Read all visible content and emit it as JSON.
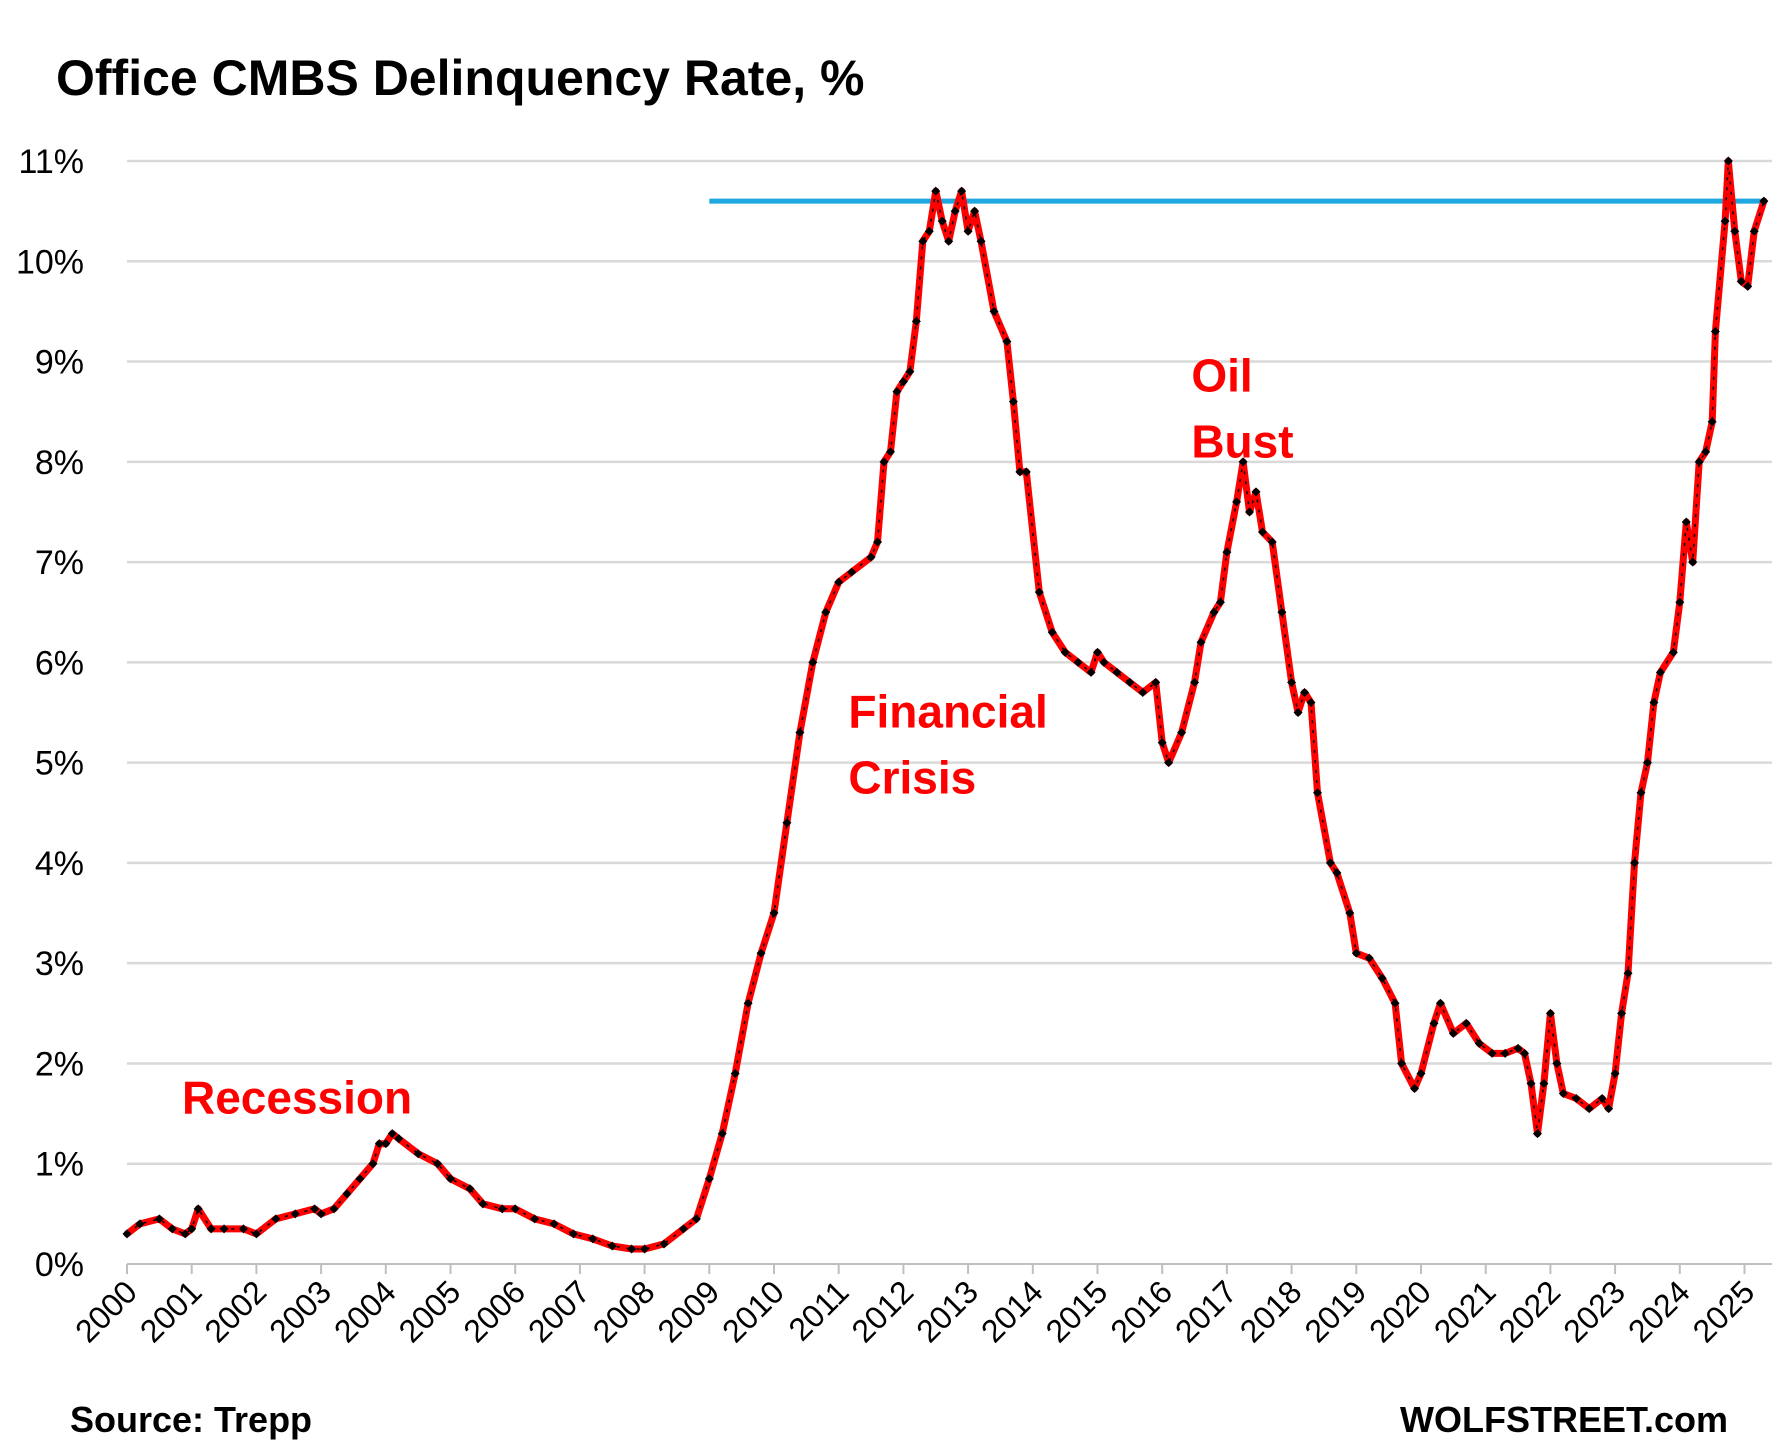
{
  "chart_data": {
    "type": "line",
    "title": "Office CMBS Delinquency Rate, %",
    "xlabel": "",
    "ylabel": "",
    "ylim": [
      0,
      11
    ],
    "xlim": [
      2000,
      2025.5
    ],
    "y_ticks": [
      "0%",
      "1%",
      "2%",
      "3%",
      "4%",
      "5%",
      "6%",
      "7%",
      "8%",
      "9%",
      "10%",
      "11%"
    ],
    "x_ticks": [
      "2000",
      "2001",
      "2002",
      "2003",
      "2004",
      "2005",
      "2006",
      "2007",
      "2008",
      "2009",
      "2010",
      "2011",
      "2012",
      "2013",
      "2014",
      "2015",
      "2016",
      "2017",
      "2018",
      "2019",
      "2020",
      "2021",
      "2022",
      "2023",
      "2024",
      "2025"
    ],
    "grid": true,
    "legend": "none",
    "colors": {
      "line": "#ff0000",
      "markers": "#000000",
      "reference_line": "#1fa8e0",
      "annotations": "#ff0000"
    },
    "series": [
      {
        "values": [
          [
            2000.0,
            0.3
          ],
          [
            2000.2,
            0.4
          ],
          [
            2000.5,
            0.45
          ],
          [
            2000.7,
            0.35
          ],
          [
            2000.9,
            0.3
          ],
          [
            2001.0,
            0.35
          ],
          [
            2001.1,
            0.55
          ],
          [
            2001.3,
            0.35
          ],
          [
            2001.5,
            0.35
          ],
          [
            2001.8,
            0.35
          ],
          [
            2002.0,
            0.3
          ],
          [
            2002.3,
            0.45
          ],
          [
            2002.6,
            0.5
          ],
          [
            2002.9,
            0.55
          ],
          [
            2003.0,
            0.5
          ],
          [
            2003.2,
            0.55
          ],
          [
            2003.4,
            0.7
          ],
          [
            2003.6,
            0.85
          ],
          [
            2003.8,
            1.0
          ],
          [
            2003.9,
            1.2
          ],
          [
            2004.0,
            1.2
          ],
          [
            2004.1,
            1.3
          ],
          [
            2004.2,
            1.25
          ],
          [
            2004.5,
            1.1
          ],
          [
            2004.8,
            1.0
          ],
          [
            2005.0,
            0.85
          ],
          [
            2005.3,
            0.75
          ],
          [
            2005.5,
            0.6
          ],
          [
            2005.8,
            0.55
          ],
          [
            2006.0,
            0.55
          ],
          [
            2006.3,
            0.45
          ],
          [
            2006.6,
            0.4
          ],
          [
            2006.9,
            0.3
          ],
          [
            2007.2,
            0.25
          ],
          [
            2007.5,
            0.18
          ],
          [
            2007.8,
            0.15
          ],
          [
            2008.0,
            0.15
          ],
          [
            2008.3,
            0.2
          ],
          [
            2008.6,
            0.35
          ],
          [
            2008.8,
            0.45
          ],
          [
            2009.0,
            0.85
          ],
          [
            2009.2,
            1.3
          ],
          [
            2009.4,
            1.9
          ],
          [
            2009.6,
            2.6
          ],
          [
            2009.8,
            3.1
          ],
          [
            2010.0,
            3.5
          ],
          [
            2010.2,
            4.4
          ],
          [
            2010.4,
            5.3
          ],
          [
            2010.6,
            6.0
          ],
          [
            2010.8,
            6.5
          ],
          [
            2011.0,
            6.8
          ],
          [
            2011.2,
            6.9
          ],
          [
            2011.5,
            7.05
          ],
          [
            2011.6,
            7.2
          ],
          [
            2011.7,
            8.0
          ],
          [
            2011.8,
            8.1
          ],
          [
            2011.9,
            8.7
          ],
          [
            2012.0,
            8.8
          ],
          [
            2012.1,
            8.9
          ],
          [
            2012.2,
            9.4
          ],
          [
            2012.3,
            10.2
          ],
          [
            2012.4,
            10.3
          ],
          [
            2012.5,
            10.7
          ],
          [
            2012.6,
            10.4
          ],
          [
            2012.7,
            10.2
          ],
          [
            2012.8,
            10.5
          ],
          [
            2012.9,
            10.7
          ],
          [
            2013.0,
            10.3
          ],
          [
            2013.1,
            10.5
          ],
          [
            2013.2,
            10.2
          ],
          [
            2013.4,
            9.5
          ],
          [
            2013.6,
            9.2
          ],
          [
            2013.7,
            8.6
          ],
          [
            2013.8,
            7.9
          ],
          [
            2013.9,
            7.9
          ],
          [
            2014.1,
            6.7
          ],
          [
            2014.3,
            6.3
          ],
          [
            2014.5,
            6.1
          ],
          [
            2014.7,
            6.0
          ],
          [
            2014.9,
            5.9
          ],
          [
            2015.0,
            6.1
          ],
          [
            2015.1,
            6.0
          ],
          [
            2015.3,
            5.9
          ],
          [
            2015.5,
            5.8
          ],
          [
            2015.7,
            5.7
          ],
          [
            2015.9,
            5.8
          ],
          [
            2016.0,
            5.2
          ],
          [
            2016.1,
            5.0
          ],
          [
            2016.3,
            5.3
          ],
          [
            2016.5,
            5.8
          ],
          [
            2016.6,
            6.2
          ],
          [
            2016.8,
            6.5
          ],
          [
            2016.9,
            6.6
          ],
          [
            2017.0,
            7.1
          ],
          [
            2017.15,
            7.6
          ],
          [
            2017.25,
            8.0
          ],
          [
            2017.35,
            7.5
          ],
          [
            2017.45,
            7.7
          ],
          [
            2017.55,
            7.3
          ],
          [
            2017.7,
            7.2
          ],
          [
            2017.85,
            6.5
          ],
          [
            2018.0,
            5.8
          ],
          [
            2018.1,
            5.5
          ],
          [
            2018.2,
            5.7
          ],
          [
            2018.3,
            5.6
          ],
          [
            2018.4,
            4.7
          ],
          [
            2018.6,
            4.0
          ],
          [
            2018.7,
            3.9
          ],
          [
            2018.9,
            3.5
          ],
          [
            2019.0,
            3.1
          ],
          [
            2019.2,
            3.05
          ],
          [
            2019.4,
            2.85
          ],
          [
            2019.6,
            2.6
          ],
          [
            2019.7,
            2.0
          ],
          [
            2019.9,
            1.75
          ],
          [
            2020.0,
            1.9
          ],
          [
            2020.2,
            2.4
          ],
          [
            2020.3,
            2.6
          ],
          [
            2020.5,
            2.3
          ],
          [
            2020.7,
            2.4
          ],
          [
            2020.9,
            2.2
          ],
          [
            2021.1,
            2.1
          ],
          [
            2021.3,
            2.1
          ],
          [
            2021.5,
            2.15
          ],
          [
            2021.6,
            2.1
          ],
          [
            2021.7,
            1.8
          ],
          [
            2021.8,
            1.3
          ],
          [
            2021.9,
            1.8
          ],
          [
            2022.0,
            2.5
          ],
          [
            2022.1,
            2.0
          ],
          [
            2022.2,
            1.7
          ],
          [
            2022.4,
            1.65
          ],
          [
            2022.6,
            1.55
          ],
          [
            2022.8,
            1.65
          ],
          [
            2022.9,
            1.55
          ],
          [
            2023.0,
            1.9
          ],
          [
            2023.1,
            2.5
          ],
          [
            2023.2,
            2.9
          ],
          [
            2023.3,
            4.0
          ],
          [
            2023.4,
            4.7
          ],
          [
            2023.5,
            5.0
          ],
          [
            2023.6,
            5.6
          ],
          [
            2023.7,
            5.9
          ],
          [
            2023.9,
            6.1
          ],
          [
            2024.0,
            6.6
          ],
          [
            2024.1,
            7.4
          ],
          [
            2024.2,
            7.0
          ],
          [
            2024.3,
            8.0
          ],
          [
            2024.4,
            8.1
          ],
          [
            2024.5,
            8.4
          ],
          [
            2024.55,
            9.3
          ],
          [
            2024.7,
            10.4
          ],
          [
            2024.75,
            11.0
          ],
          [
            2024.85,
            10.3
          ],
          [
            2024.95,
            9.8
          ],
          [
            2025.05,
            9.75
          ],
          [
            2025.15,
            10.3
          ],
          [
            2025.3,
            10.6
          ]
        ]
      }
    ],
    "reference_lines": [
      {
        "y": 10.6,
        "x_start": 2009.0,
        "x_end": 2025.3
      }
    ],
    "annotations": [
      {
        "lines": [
          "Recession"
        ],
        "x": 2000.85,
        "y": 1.5
      },
      {
        "lines": [
          "Financial",
          "Crisis"
        ],
        "x": 2011.15,
        "y": 5.35
      },
      {
        "lines": [
          "Oil",
          "Bust"
        ],
        "x": 2016.45,
        "y": 8.7
      }
    ]
  },
  "footer": {
    "source": "Source: Trepp",
    "brand": "WOLFSTREET.com"
  }
}
